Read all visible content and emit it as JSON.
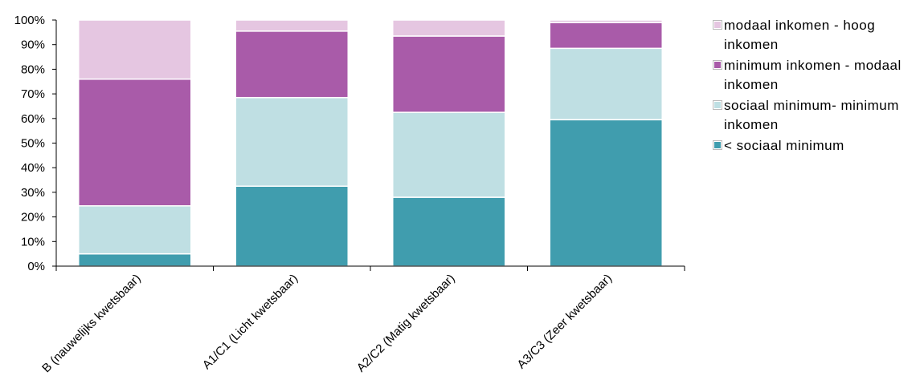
{
  "chart_data": {
    "type": "bar",
    "stacked": true,
    "percent": true,
    "categories": [
      "B (nauwelijks kwetsbaar)",
      "A1/C1 (Licht kwetsbaar)",
      "A2/C2 (Matig kwetsbaar)",
      "A3/C3 (Zeer kwetsbaar)"
    ],
    "series": [
      {
        "name": "< sociaal minimum",
        "color": "#409dae",
        "values": [
          5,
          32.5,
          28,
          59.5
        ]
      },
      {
        "name": "sociaal minimum- minimum inkomen",
        "color": "#bfdfe3",
        "values": [
          19.5,
          36,
          34.5,
          29
        ]
      },
      {
        "name": "minimum inkomen - modaal inkomen",
        "color": "#a95ba9",
        "values": [
          51.5,
          27,
          31,
          10.5
        ]
      },
      {
        "name": "modaal inkomen - hoog inkomen",
        "color": "#e5c6e1",
        "values": [
          24,
          4.5,
          6.5,
          1
        ]
      }
    ],
    "yticks": [
      "0%",
      "10%",
      "20%",
      "30%",
      "40%",
      "50%",
      "60%",
      "70%",
      "80%",
      "90%",
      "100%"
    ],
    "ylim": [
      0,
      100
    ],
    "legend_position": "right",
    "legend_order": [
      "modaal inkomen - hoog inkomen",
      "minimum inkomen - modaal inkomen",
      "sociaal minimum- minimum inkomen",
      "< sociaal minimum"
    ],
    "title": "",
    "xlabel": "",
    "ylabel": ""
  }
}
